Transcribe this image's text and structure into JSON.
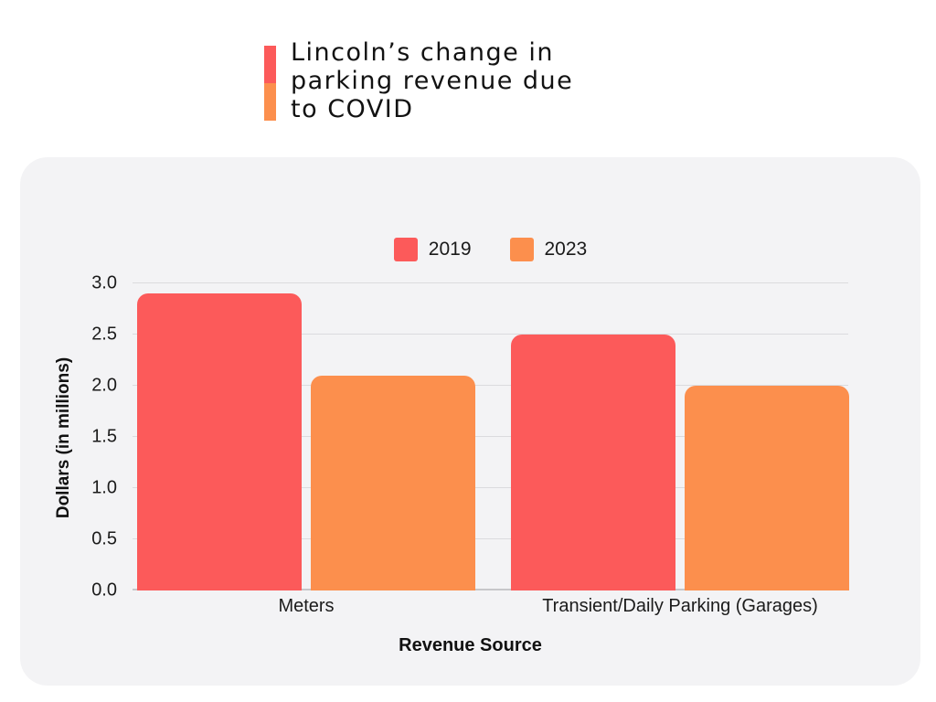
{
  "header": {
    "title_lines": [
      "Lincoln’s change in",
      "parking revenue due",
      "to COVID"
    ],
    "accent_top_color": "#FC5A5A",
    "accent_bottom_color": "#FC8F4D"
  },
  "chart_data": {
    "type": "bar",
    "title": "Lincoln’s change in parking revenue due to COVID",
    "categories": [
      "Meters",
      "Transient/Daily Parking (Garages)"
    ],
    "series": [
      {
        "name": "2019",
        "color": "#FC5A5A",
        "values": [
          2.9,
          2.5
        ]
      },
      {
        "name": "2023",
        "color": "#FC8F4D",
        "values": [
          2.1,
          2.0
        ]
      }
    ],
    "xlabel": "Revenue Source",
    "ylabel": "Dollars (in millions)",
    "ylim": [
      0,
      3.0
    ],
    "ytick_step": 0.5,
    "yticks": [
      "0.0",
      "0.5",
      "1.0",
      "1.5",
      "2.0",
      "2.5",
      "3.0"
    ],
    "grid": true,
    "legend_position": "top-center",
    "background_card_color": "#F3F3F5",
    "gridline_color": "#DBDBDE"
  }
}
